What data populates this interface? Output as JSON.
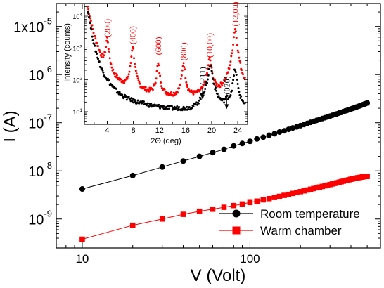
{
  "chart_data": [
    {
      "type": "line",
      "xlabel": "V (Volt)",
      "ylabel": "I (A)",
      "x_scale": "log",
      "y_scale": "log",
      "xlim": [
        7,
        600
      ],
      "ylim": [
        2.5e-10,
        3e-05
      ],
      "x_ticks": [
        {
          "value": 10,
          "label": "10"
        },
        {
          "value": 100,
          "label": "100"
        }
      ],
      "y_ticks": [
        {
          "value": 1e-09,
          "label": "10",
          "exp": "-9"
        },
        {
          "value": 1e-08,
          "label": "10",
          "exp": "-8"
        },
        {
          "value": 1e-07,
          "label": "10",
          "exp": "-7"
        },
        {
          "value": 1e-06,
          "label": "10",
          "exp": "-6"
        },
        {
          "value": 1e-05,
          "label": "1x10",
          "exp": "-5"
        }
      ],
      "legend_position": "bottom-right",
      "series": [
        {
          "name": "Room temperature",
          "color": "#000000",
          "marker": "circle",
          "x": [
            10,
            20,
            30,
            40,
            50,
            60,
            70,
            80,
            90,
            100,
            110,
            120,
            130,
            140,
            150,
            160,
            170,
            180,
            190,
            200,
            210,
            220,
            230,
            240,
            250,
            260,
            270,
            280,
            290,
            300,
            310,
            320,
            330,
            340,
            350,
            360,
            370,
            380,
            390,
            400,
            410,
            420,
            430,
            440,
            450,
            460,
            470,
            480,
            490,
            500
          ],
          "y": [
            4.2e-09,
            8e-09,
            1.2e-08,
            1.6e-08,
            2e-08,
            2.4e-08,
            2.8e-08,
            3.3e-08,
            3.7e-08,
            4.1e-08,
            4.6e-08,
            5e-08,
            5.5e-08,
            5.9e-08,
            6.4e-08,
            6.8e-08,
            7.3e-08,
            7.8e-08,
            8.2e-08,
            8.7e-08,
            9.2e-08,
            9.7e-08,
            1.02e-07,
            1.07e-07,
            1.12e-07,
            1.17e-07,
            1.22e-07,
            1.27e-07,
            1.32e-07,
            1.37e-07,
            1.43e-07,
            1.48e-07,
            1.53e-07,
            1.59e-07,
            1.64e-07,
            1.7e-07,
            1.76e-07,
            1.81e-07,
            1.87e-07,
            1.93e-07,
            1.99e-07,
            2.05e-07,
            2.11e-07,
            2.17e-07,
            2.23e-07,
            2.3e-07,
            2.36e-07,
            2.43e-07,
            2.5e-07,
            2.57e-07
          ]
        },
        {
          "name": "Warm chamber",
          "color": "#ff0000",
          "marker": "square",
          "x": [
            10,
            20,
            30,
            40,
            50,
            60,
            70,
            80,
            90,
            100,
            110,
            120,
            130,
            140,
            150,
            160,
            170,
            180,
            190,
            200,
            210,
            220,
            230,
            240,
            250,
            260,
            270,
            280,
            290,
            300,
            310,
            320,
            330,
            340,
            350,
            360,
            370,
            380,
            390,
            400,
            410,
            420,
            430,
            440,
            450,
            460,
            470,
            480,
            490,
            500
          ],
          "y": [
            3.8e-10,
            7.4e-10,
            1e-09,
            1.25e-09,
            1.45e-09,
            1.6e-09,
            1.75e-09,
            1.9e-09,
            2.05e-09,
            2.2e-09,
            2.35e-09,
            2.5e-09,
            2.65e-09,
            2.8e-09,
            2.95e-09,
            3.1e-09,
            3.25e-09,
            3.4e-09,
            3.55e-09,
            3.7e-09,
            3.85e-09,
            4e-09,
            4.15e-09,
            4.3e-09,
            4.45e-09,
            4.6e-09,
            4.75e-09,
            4.9e-09,
            5.05e-09,
            5.2e-09,
            5.35e-09,
            5.5e-09,
            5.65e-09,
            5.8e-09,
            5.95e-09,
            6.1e-09,
            6.25e-09,
            6.4e-09,
            6.55e-09,
            6.7e-09,
            6.85e-09,
            7e-09,
            7.1e-09,
            7.2e-09,
            7.3e-09,
            7.4e-09,
            7.5e-09,
            7.6e-09,
            7.65e-09,
            7.7e-09
          ]
        }
      ]
    },
    {
      "type": "scatter",
      "xlabel": "2Θ (deg)",
      "ylabel": "Intensity (counts)",
      "x_scale": "linear",
      "y_scale": "log",
      "xlim": [
        0.5,
        25.5
      ],
      "ylim": [
        4,
        25000
      ],
      "x_ticks": [
        {
          "value": 4,
          "label": "4"
        },
        {
          "value": 8,
          "label": "8"
        },
        {
          "value": 12,
          "label": "12"
        },
        {
          "value": 16,
          "label": "16"
        },
        {
          "value": 20,
          "label": "20"
        },
        {
          "value": 24,
          "label": "24"
        }
      ],
      "y_ticks": [
        {
          "value": 10,
          "label": "10",
          "exp": "1"
        },
        {
          "value": 100,
          "label": "10",
          "exp": "2"
        },
        {
          "value": 1000,
          "label": "10",
          "exp": "3"
        },
        {
          "value": 10000,
          "label": "10",
          "exp": "4"
        }
      ],
      "annotations": [
        {
          "text": "(200)",
          "x": 4.0,
          "y": 2200,
          "color": "#ff0000"
        },
        {
          "text": "(400)",
          "x": 7.9,
          "y": 1300,
          "color": "#ff0000"
        },
        {
          "text": "(600)",
          "x": 11.8,
          "y": 600,
          "color": "#ff0000"
        },
        {
          "text": "(800)",
          "x": 15.7,
          "y": 400,
          "color": "#ff0000"
        },
        {
          "text": "(211)",
          "x": 18.6,
          "y": 70,
          "color": "#000000",
          "arrow": true
        },
        {
          "text": "(10,00)",
          "x": 19.7,
          "y": 500,
          "color": "#ff0000"
        },
        {
          "text": "(020)",
          "x": 22.3,
          "y": 35,
          "color": "#000000",
          "arrow": true
        },
        {
          "text": "(12,00)",
          "x": 23.6,
          "y": 4800,
          "color": "#ff0000"
        }
      ],
      "series": [
        {
          "color": "#ff0000",
          "baseline": {
            "x": [
              1,
              2,
              3,
              4,
              5,
              6,
              7,
              8,
              9,
              10,
              11,
              12,
              13,
              14,
              15,
              16,
              17,
              18,
              19,
              20,
              21,
              22,
              23,
              24,
              25
            ],
            "y": [
              20000,
              2500,
              600,
              250,
              110,
              75,
              55,
              45,
              40,
              36,
              32,
              30,
              28,
              26,
              25,
              24,
              24,
              25,
              28,
              30,
              24,
              20,
              20,
              22,
              25
            ]
          },
          "peaks": [
            {
              "x": 4.0,
              "y": 1800,
              "width": 0.18
            },
            {
              "x": 7.9,
              "y": 1100,
              "width": 0.18
            },
            {
              "x": 11.8,
              "y": 280,
              "width": 0.2
            },
            {
              "x": 15.7,
              "y": 320,
              "width": 0.2
            },
            {
              "x": 19.7,
              "y": 420,
              "width": 0.25
            },
            {
              "x": 23.6,
              "y": 4000,
              "width": 0.22
            }
          ]
        },
        {
          "color": "#000000",
          "baseline": {
            "x": [
              1,
              2,
              3,
              4,
              5,
              6,
              7,
              8,
              9,
              10,
              11,
              12,
              13,
              14,
              15,
              16,
              17,
              18,
              19,
              20,
              21,
              22,
              23,
              24,
              25
            ],
            "y": [
              16000,
              1200,
              250,
              100,
              55,
              35,
              27,
              22,
              19,
              17,
              15,
              14,
              13,
              12,
              12,
              11,
              11,
              12,
              18,
              20,
              14,
              10,
              10,
              11,
              12
            ]
          },
          "peaks": [
            {
              "x": 4.0,
              "y": 8,
              "width": 0.2
            },
            {
              "x": 18.6,
              "y": 8,
              "width": 0.3
            },
            {
              "x": 19.8,
              "y": 260,
              "width": 0.3
            },
            {
              "x": 22.3,
              "y": 8,
              "width": 0.3
            },
            {
              "x": 23.6,
              "y": 200,
              "width": 0.25
            }
          ]
        }
      ]
    }
  ]
}
